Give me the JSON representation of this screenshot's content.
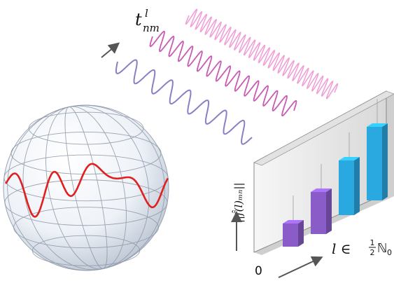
{
  "labels": {
    "t_symbol": "t",
    "t_super": "l",
    "t_sub": "nm",
    "yaxis": "||f̂(l)ₘₙ||",
    "xaxis_prefix": "l ∈",
    "half_num": "1",
    "half_den": "2",
    "naturals": "ℕ",
    "naturals_sub": "0",
    "origin": "0"
  },
  "colors": {
    "wave_front": "#8b7fc4",
    "wave_mid": "#c85bb4",
    "wave_back": "#f0a0d8",
    "sphere_curve": "#e02020",
    "bar_purple": "#8a5cc8",
    "bar_blue": "#2aa8e0",
    "arrow": "#555555"
  },
  "bars": [
    {
      "index": 1,
      "height_fraction": 0.22,
      "color": "purple"
    },
    {
      "index": 2,
      "height_fraction": 0.4,
      "color": "purple"
    },
    {
      "index": 3,
      "height_fraction": 0.52,
      "color": "blue"
    },
    {
      "index": 4,
      "height_fraction": 0.7,
      "color": "blue"
    }
  ]
}
